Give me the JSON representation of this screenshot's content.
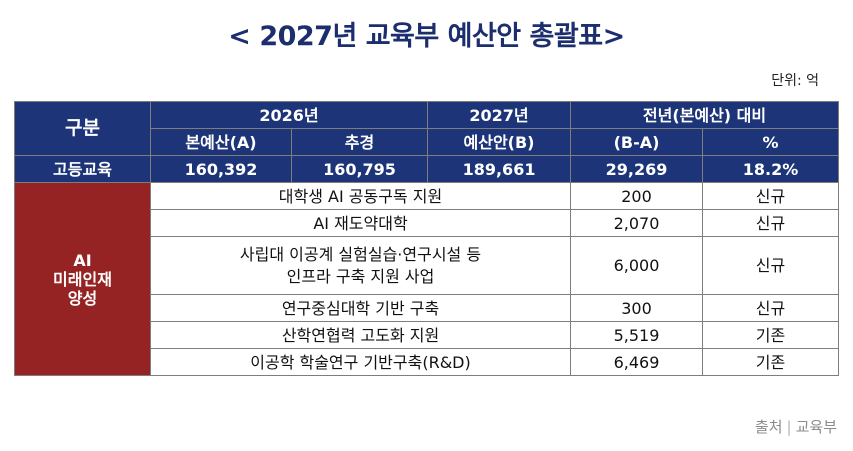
{
  "title": "< 2027년 교육부 예산안 총괄표>",
  "unit": "단위: 억",
  "header": {
    "category": "구분",
    "year2026": "2026년",
    "base": "본예산(A)",
    "supplementary": "추경",
    "year2027": "2027년",
    "proposal": "예산안(B)",
    "compare": "전년(본예산) 대비",
    "diff": "(B-A)",
    "percent": "%"
  },
  "total": {
    "label": "고등교육",
    "base": "160,392",
    "supplementary": "160,795",
    "proposal": "189,661",
    "diff": "29,269",
    "percent": "18.2%"
  },
  "section": {
    "label_line1": "AI",
    "label_line2": "미래인재",
    "label_line3": "양성",
    "items": [
      {
        "name": "대학생 AI 공동구독 지원",
        "amount": "200",
        "status": "신규"
      },
      {
        "name": "AI 재도약대학",
        "amount": "2,070",
        "status": "신규"
      },
      {
        "name_line1": "사립대 이공계 실험실습·연구시설 등",
        "name_line2": "인프라 구축 지원 사업",
        "amount": "6,000",
        "status": "신규"
      },
      {
        "name": "연구중심대학 기반 구축",
        "amount": "300",
        "status": "신규"
      },
      {
        "name": "산학연협력 고도화 지원",
        "amount": "5,519",
        "status": "기존"
      },
      {
        "name": "이공학 학술연구 기반구축(R&D)",
        "amount": "6,469",
        "status": "기존"
      }
    ]
  },
  "source": {
    "label": "출처",
    "org": "교육부"
  }
}
